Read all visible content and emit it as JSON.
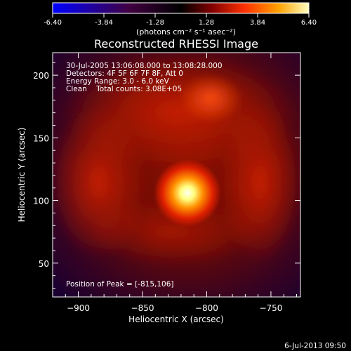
{
  "chart_data": {
    "type": "heatmap",
    "title": "Reconstructed RHESSI Image",
    "xlabel": "Heliocentric X (arcsec)",
    "ylabel": "Heliocentric Y (arcsec)",
    "x_ticks": [
      "-900",
      "-850",
      "-800",
      "-750"
    ],
    "y_ticks": [
      "50",
      "100",
      "150",
      "200"
    ],
    "xlim": [
      -920,
      -727
    ],
    "ylim": [
      23,
      218
    ],
    "colorbar": {
      "unit_label": "(photons cm⁻² s⁻¹ asec⁻²)",
      "ticks": [
        "-6.40",
        "-3.84",
        "-1.28",
        "1.28",
        "3.84",
        "6.40"
      ],
      "range": [
        -6.4,
        6.4
      ],
      "colormap": [
        "#0000ff",
        "#400040",
        "#000000",
        "#800000",
        "#ff3000",
        "#ffa000",
        "#ffffc0"
      ]
    },
    "info_lines": [
      "30-Jul-2005 13:06:08.000 to 13:08:28.000",
      "Detectors: 4F 5F 6F 7F 8F, Att 0",
      "Energy Range: 3.0 - 6.0 keV",
      "Clean    Total counts: 3.08E+05"
    ],
    "peak_label": "Position of Peak = [-815,106]",
    "peak": {
      "x": -815,
      "y": 106
    },
    "grid": false
  },
  "footer": {
    "timestamp": "6-Jul-2013 09:50"
  }
}
